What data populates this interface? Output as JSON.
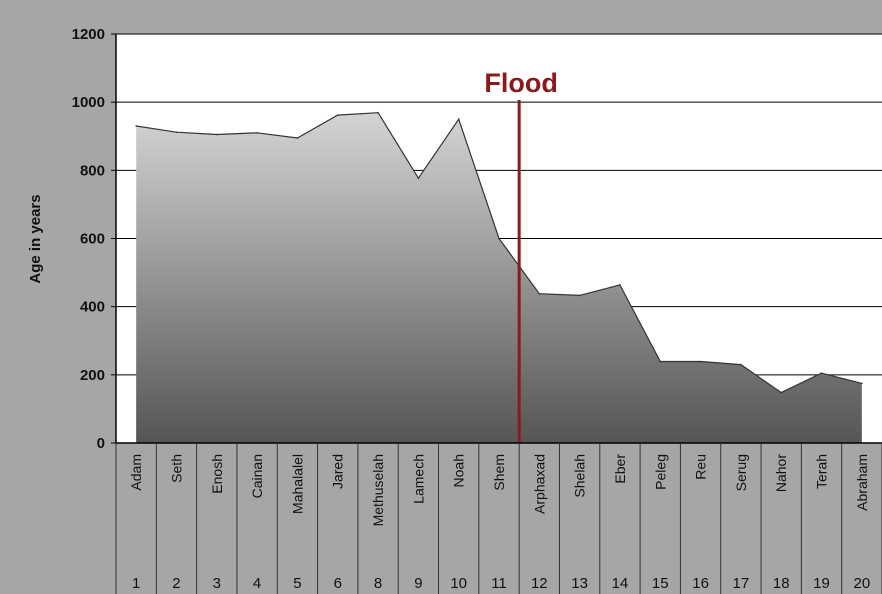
{
  "chart_data": {
    "type": "area",
    "ylabel": "Age in years",
    "ylim": [
      0,
      1200
    ],
    "yticks": [
      0,
      200,
      400,
      600,
      800,
      1000,
      1200
    ],
    "grid": true,
    "categories": [
      "Adam",
      "Seth",
      "Enosh",
      "Cainan",
      "Mahalalel",
      "Jared",
      "Methuselah",
      "Lamech",
      "Noah",
      "Shem",
      "Arphaxad",
      "Shelah",
      "Eber",
      "Peleg",
      "Reu",
      "Serug",
      "Nahor",
      "Terah",
      "Abraham"
    ],
    "numbers": [
      "1",
      "2",
      "3",
      "4",
      "5",
      "6",
      "8",
      "9",
      "10",
      "11",
      "12",
      "13",
      "14",
      "15",
      "16",
      "17",
      "18",
      "19",
      "20"
    ],
    "points": [
      {
        "x": 0.5,
        "y": 930
      },
      {
        "x": 1.5,
        "y": 912
      },
      {
        "x": 2.5,
        "y": 905
      },
      {
        "x": 3.5,
        "y": 910
      },
      {
        "x": 4.5,
        "y": 895
      },
      {
        "x": 5.5,
        "y": 962
      },
      {
        "x": 6.5,
        "y": 969
      },
      {
        "x": 7.5,
        "y": 777
      },
      {
        "x": 8.5,
        "y": 950
      },
      {
        "x": 9.5,
        "y": 600
      },
      {
        "x": 10.5,
        "y": 438
      },
      {
        "x": 11.5,
        "y": 433
      },
      {
        "x": 12.5,
        "y": 464
      },
      {
        "x": 13.5,
        "y": 239
      },
      {
        "x": 14.5,
        "y": 239
      },
      {
        "x": 15.5,
        "y": 230
      },
      {
        "x": 16.5,
        "y": 148
      },
      {
        "x": 17.5,
        "y": 205
      },
      {
        "x": 18.5,
        "y": 175
      }
    ],
    "annotation": {
      "label": "Flood",
      "x": 10.0,
      "color": "#8b1a1a"
    },
    "colors": {
      "fill_top": "#d4d4d4",
      "fill_bottom": "#555555",
      "outline": "#333333",
      "plot_bg": "#ffffff",
      "grid": "#000000"
    }
  }
}
